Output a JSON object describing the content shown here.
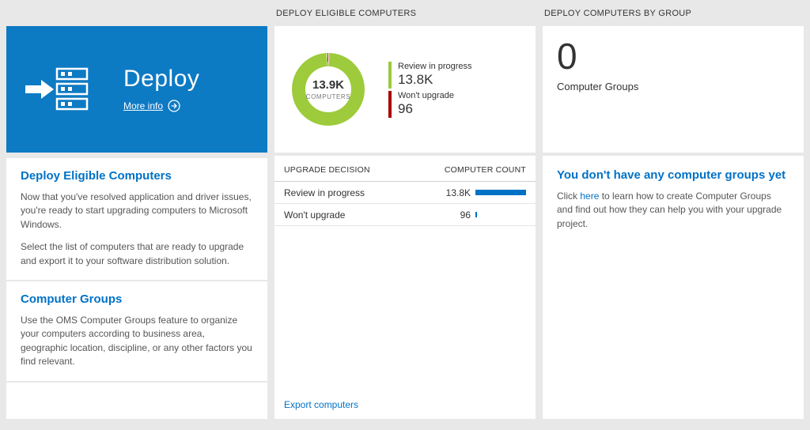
{
  "colors": {
    "accent_blue": "#0072c6",
    "tile_blue": "#0d7ac4",
    "donut_green": "#9dcb3b",
    "donut_red": "#a80000",
    "table_bar_blue": "#0072c6"
  },
  "left": {
    "tile": {
      "title": "Deploy",
      "more_info": "More info"
    },
    "sections": [
      {
        "heading": "Deploy Eligible Computers",
        "paragraphs": [
          "Now that you've resolved application and driver issues, you're ready to start upgrading computers to Microsoft Windows.",
          "Select the list of computers that are ready to upgrade and export it to your software distribution solution."
        ]
      },
      {
        "heading": "Computer Groups",
        "paragraphs": [
          "Use the OMS Computer Groups feature to organize your computers according to business area, geographic location, discipline, or any other factors you find relevant."
        ]
      }
    ]
  },
  "middle": {
    "header": "DEPLOY ELIGIBLE COMPUTERS",
    "export_link": "Export computers"
  },
  "right": {
    "header": "DEPLOY COMPUTERS BY GROUP",
    "count": "0",
    "count_label": "Computer Groups",
    "heading": "You don't have any computer groups yet",
    "message_before": "Click ",
    "link_text": "here",
    "message_after": " to learn how to create Computer Groups and find out how they can help you with your upgrade project."
  },
  "chart_data": [
    {
      "type": "pie",
      "subtype": "donut",
      "title": "DEPLOY ELIGIBLE COMPUTERS",
      "center_value": "13.9K",
      "center_label": "COMPUTERS",
      "legend_position": "right",
      "series": [
        {
          "name": "Review in progress",
          "value": 13800,
          "display": "13.8K",
          "color": "#9dcb3b"
        },
        {
          "name": "Won't upgrade",
          "value": 96,
          "display": "96",
          "color": "#a80000"
        }
      ]
    },
    {
      "type": "table",
      "columns": [
        "UPGRADE DECISION",
        "COMPUTER COUNT"
      ],
      "bar_color": "#0072c6",
      "rows": [
        {
          "label": "Review in progress",
          "value": 13800,
          "display": "13.8K"
        },
        {
          "label": "Won't upgrade",
          "value": 96,
          "display": "96"
        }
      ]
    }
  ]
}
